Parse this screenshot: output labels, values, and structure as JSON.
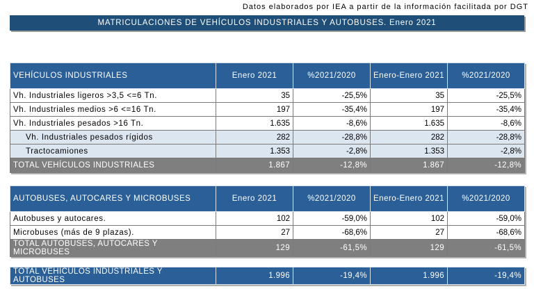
{
  "source": "Datos elaborados por IEA a partir de la información facilitada por DGT",
  "title": "MATRICULACIONES DE VEHÍCULOS INDUSTRIALES Y AUTOBUSES. Enero 2021",
  "industrial": {
    "headers": [
      "VEHÍCULOS INDUSTRIALES",
      "Enero 2021",
      "%2021/2020",
      "Enero-Enero 2021",
      "%2021/2020"
    ],
    "rows": [
      {
        "label": "Vh. Industriales ligeros >3,5 <=6 Tn.",
        "v1": "35",
        "p1": "-25,5%",
        "v2": "35",
        "p2": "-25,5%"
      },
      {
        "label": "Vh. Industriales medios >6 <=16 Tn.",
        "v1": "197",
        "p1": "-35,4%",
        "v2": "197",
        "p2": "-35,4%"
      },
      {
        "label": "Vh. Industriales pesados >16 Tn.",
        "v1": "1.635",
        "p1": "-8,6%",
        "v2": "1.635",
        "p2": "-8,6%"
      },
      {
        "label": "Vh. Industriales pesados rígidos",
        "v1": "282",
        "p1": "-28,8%",
        "v2": "282",
        "p2": "-28,8%"
      },
      {
        "label": "Tractocamiones",
        "v1": "1.353",
        "p1": "-2,8%",
        "v2": "1.353",
        "p2": "-2,8%"
      }
    ],
    "total": {
      "label": "TOTAL VEHÍCULOS INDUSTRIALES",
      "v1": "1.867",
      "p1": "-12,8%",
      "v2": "1.867",
      "p2": "-12,8%"
    }
  },
  "buses": {
    "headers": [
      "AUTOBUSES, AUTOCARES Y MICROBUSES",
      "Enero 2021",
      "%2021/2020",
      "Enero-Enero 2021",
      "%2021/2020"
    ],
    "rows": [
      {
        "label": "Autobuses y autocares.",
        "v1": "102",
        "p1": "-59,0%",
        "v2": "102",
        "p2": "-59,0%"
      },
      {
        "label": "Microbuses (más de 9 plazas).",
        "v1": "27",
        "p1": "-68,6%",
        "v2": "27",
        "p2": "-68,6%"
      }
    ],
    "total": {
      "label": "TOTAL AUTOBUSES, AUTOCARES Y MICROBUSES",
      "v1": "129",
      "p1": "-61,5%",
      "v2": "129",
      "p2": "-61,5%"
    }
  },
  "grand_total": {
    "label": "TOTAL VEHÍCULOS INDUSTRIALES Y AUTOBUSES",
    "v1": "1.996",
    "p1": "-19,4%",
    "v2": "1.996",
    "p2": "-19,4%"
  }
}
